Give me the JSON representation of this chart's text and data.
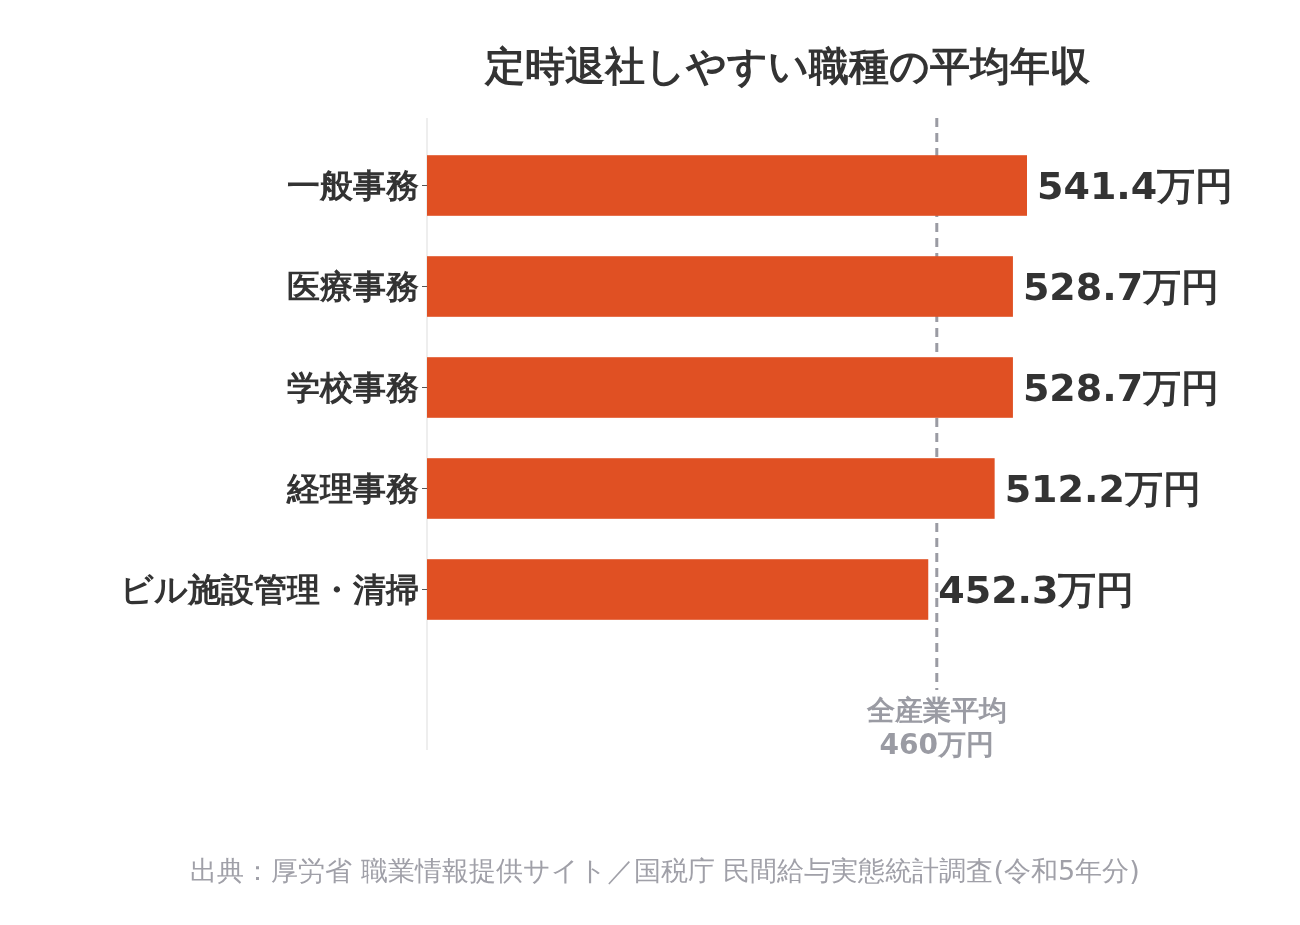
{
  "chart_data": {
    "type": "bar",
    "orientation": "horizontal",
    "title": "定時退社しやすい職種の平均年収",
    "categories": [
      "一般事務",
      "医療事務",
      "学校事務",
      "経理事務",
      "ビル施設管理・清掃"
    ],
    "values": [
      541.4,
      528.7,
      528.7,
      512.2,
      452.3
    ],
    "value_labels": [
      "541.4万円",
      "528.7万円",
      "528.7万円",
      "512.2万円",
      "452.3万円"
    ],
    "color": "#e05023",
    "ref_lines": [
      {
        "axis": "x",
        "value": 460,
        "label": "全産業平均\n460万円",
        "color": "#9a9ba3",
        "line_style": "dashed"
      }
    ],
    "annotations": [
      "出典：厚労省 職業情報提供サイト／国税庁 民間給与実態統計調査(令和5年分)"
    ]
  }
}
